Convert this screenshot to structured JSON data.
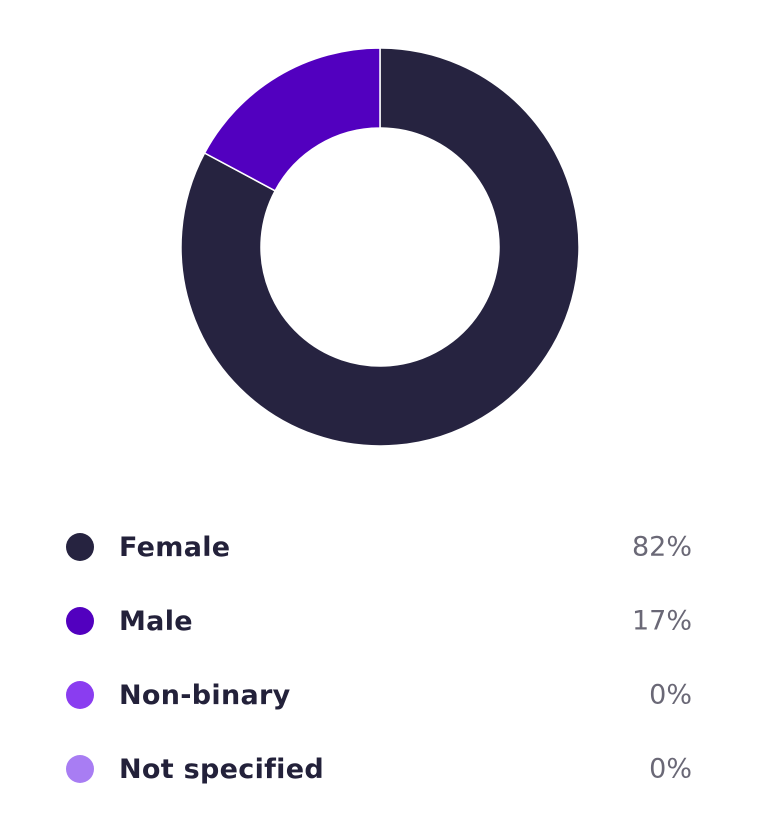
{
  "chart_data": {
    "type": "pie",
    "donut": true,
    "categories": [
      "Female",
      "Male",
      "Non-binary",
      "Not specified"
    ],
    "values": [
      82,
      17,
      0,
      0
    ],
    "value_labels": [
      "82%",
      "17%",
      "0%",
      "0%"
    ],
    "colors": [
      "#262340",
      "#5200bf",
      "#8a3df0",
      "#a87df3"
    ],
    "legend": "bottom"
  }
}
